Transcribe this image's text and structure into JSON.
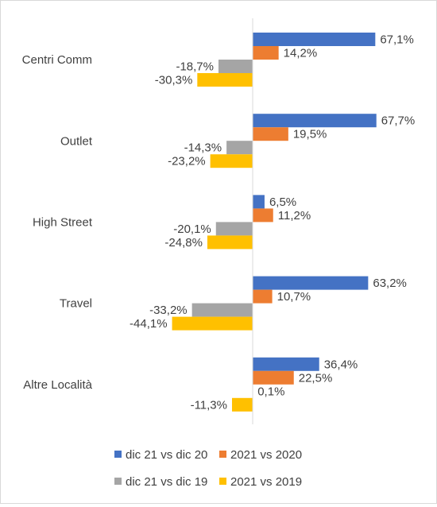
{
  "chart_data": {
    "type": "bar",
    "orientation": "horizontal",
    "categories": [
      "Centri Comm",
      "Outlet",
      "High Street",
      "Travel",
      "Altre Località"
    ],
    "series": [
      {
        "name": "dic 21 vs dic 20",
        "color": "#4472C4",
        "values": [
          67.1,
          67.7,
          6.5,
          63.2,
          36.4
        ],
        "labels": [
          "67,1%",
          "67,7%",
          "6,5%",
          "63,2%",
          "36,4%"
        ]
      },
      {
        "name": "2021 vs 2020",
        "color": "#ED7D31",
        "values": [
          14.2,
          19.5,
          11.2,
          10.7,
          22.5
        ],
        "labels": [
          "14,2%",
          "19,5%",
          "11,2%",
          "10,7%",
          "22,5%"
        ]
      },
      {
        "name": "dic 21 vs dic 19",
        "color": "#A5A5A5",
        "values": [
          -18.7,
          -14.3,
          -20.1,
          -33.2,
          0.1
        ],
        "labels": [
          "-18,7%",
          "-14,3%",
          "-20,1%",
          "-33,2%",
          "0,1%"
        ]
      },
      {
        "name": "2021 vs 2019",
        "color": "#FFC000",
        "values": [
          -30.3,
          -23.2,
          -24.8,
          -44.1,
          -11.3
        ],
        "labels": [
          "-30,3%",
          "-23,2%",
          "-24,8%",
          "-44,1%",
          "-11,3%"
        ]
      }
    ],
    "axis_color": "#d9d9d9",
    "grid": false,
    "legend_position": "bottom"
  }
}
